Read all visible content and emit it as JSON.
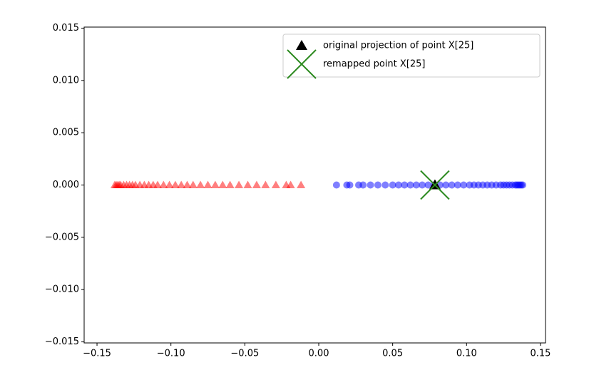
{
  "chart_data": {
    "type": "scatter",
    "xlim": [
      -0.1587,
      0.1534
    ],
    "ylim": [
      -0.0151,
      0.0151
    ],
    "xticks": [
      {
        "value": -0.15,
        "label": "−0.15"
      },
      {
        "value": -0.1,
        "label": "−0.10"
      },
      {
        "value": -0.05,
        "label": "−0.05"
      },
      {
        "value": 0,
        "label": "0.00"
      },
      0.05,
      {
        "value": 0.1,
        "label": "0.10"
      },
      0.15
    ],
    "yticks": [
      {
        "value": -0.015,
        "label": "−0.015"
      },
      {
        "value": -0.01,
        "label": "−0.010"
      },
      {
        "value": -0.005,
        "label": "−0.005"
      },
      {
        "value": 0,
        "label": "0.000"
      },
      0.005,
      {
        "value": 0.01,
        "label": "0.010"
      },
      0.015
    ],
    "legend": "upper right",
    "series": [
      {
        "color": "#ff0000",
        "marker": "^",
        "alpha": 0.5,
        "x": [
          -0.138,
          -0.137,
          -0.136,
          -0.135,
          -0.134,
          -0.132,
          -0.13,
          -0.128,
          -0.126,
          -0.124,
          -0.121,
          -0.118,
          -0.115,
          -0.112,
          -0.109,
          -0.105,
          -0.101,
          -0.097,
          -0.093,
          -0.089,
          -0.085,
          -0.08,
          -0.075,
          -0.07,
          -0.065,
          -0.06,
          -0.054,
          -0.048,
          -0.042,
          -0.036,
          -0.029,
          -0.022,
          -0.019,
          -0.012
        ],
        "y": [
          0,
          0,
          0,
          0,
          0,
          0,
          0,
          0,
          0,
          0,
          0,
          0,
          0,
          0,
          0,
          0,
          0,
          0,
          0,
          0,
          0,
          0,
          0,
          0,
          0,
          0,
          0,
          0,
          0,
          0,
          0,
          0,
          0,
          0
        ]
      },
      {
        "color": "#0000ff",
        "marker": "o",
        "alpha": 0.5,
        "x": [
          0.012,
          0.019,
          0.021,
          0.027,
          0.03,
          0.035,
          0.04,
          0.045,
          0.05,
          0.054,
          0.058,
          0.062,
          0.066,
          0.07,
          0.074,
          0.078,
          0.082,
          0.086,
          0.09,
          0.094,
          0.098,
          0.102,
          0.105,
          0.108,
          0.111,
          0.114,
          0.117,
          0.12,
          0.123,
          0.125,
          0.127,
          0.129,
          0.131,
          0.133,
          0.134,
          0.135,
          0.136,
          0.137,
          0.138
        ],
        "y": [
          0,
          0,
          0,
          0,
          0,
          0,
          0,
          0,
          0,
          0,
          0,
          0,
          0,
          0,
          0,
          0,
          0,
          0,
          0,
          0,
          0,
          0,
          0,
          0,
          0,
          0,
          0,
          0,
          0,
          0,
          0,
          0,
          0,
          0,
          0,
          0,
          0,
          0,
          0
        ]
      },
      {
        "name": "original projection of point X[25]",
        "color": "#000000",
        "marker": "^",
        "alpha": 1,
        "x": [
          0.0786
        ],
        "y": [
          0
        ]
      },
      {
        "name": "remapped point X[25]",
        "color": "#2e8b22",
        "marker": "x",
        "alpha": 1,
        "x": [
          0.0786
        ],
        "y": [
          0
        ]
      }
    ]
  }
}
